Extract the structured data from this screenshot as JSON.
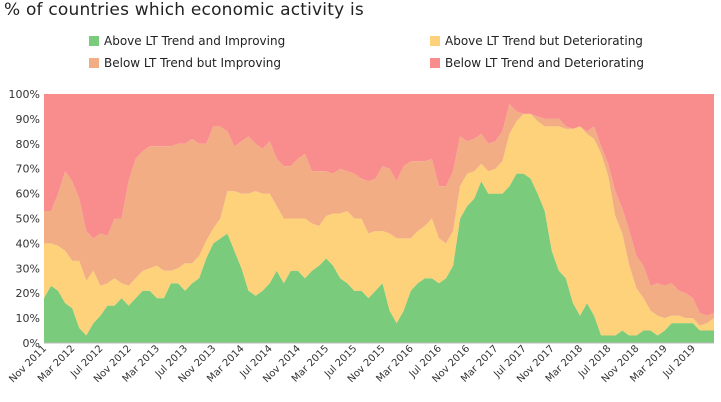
{
  "chart_data": {
    "type": "area",
    "stacked": true,
    "title": "% of countries which economic activity is",
    "x": [
      "Nov 2011",
      "Dec 2011",
      "Jan 2012",
      "Feb 2012",
      "Mar 2012",
      "Apr 2012",
      "May 2012",
      "Jun 2012",
      "Jul 2012",
      "Aug 2012",
      "Sep 2012",
      "Oct 2012",
      "Nov 2012",
      "Dec 2012",
      "Jan 2013",
      "Feb 2013",
      "Mar 2013",
      "Apr 2013",
      "May 2013",
      "Jun 2013",
      "Jul 2013",
      "Aug 2013",
      "Sep 2013",
      "Oct 2013",
      "Nov 2013",
      "Dec 2013",
      "Jan 2014",
      "Feb 2014",
      "Mar 2014",
      "Apr 2014",
      "May 2014",
      "Jun 2014",
      "Jul 2014",
      "Aug 2014",
      "Sep 2014",
      "Oct 2014",
      "Nov 2014",
      "Dec 2014",
      "Jan 2015",
      "Feb 2015",
      "Mar 2015",
      "Apr 2015",
      "May 2015",
      "Jun 2015",
      "Jul 2015",
      "Aug 2015",
      "Sep 2015",
      "Oct 2015",
      "Nov 2015",
      "Dec 2015",
      "Jan 2016",
      "Feb 2016",
      "Mar 2016",
      "Apr 2016",
      "May 2016",
      "Jun 2016",
      "Jul 2016",
      "Aug 2016",
      "Sep 2016",
      "Oct 2016",
      "Nov 2016",
      "Dec 2016",
      "Jan 2017",
      "Feb 2017",
      "Mar 2017",
      "Apr 2017",
      "May 2017",
      "Jun 2017",
      "Jul 2017",
      "Aug 2017",
      "Sep 2017",
      "Oct 2017",
      "Nov 2017",
      "Dec 2017",
      "Jan 2018",
      "Feb 2018",
      "Mar 2018",
      "Apr 2018",
      "May 2018",
      "Jun 2018",
      "Jul 2018",
      "Aug 2018",
      "Sep 2018",
      "Oct 2018",
      "Nov 2018",
      "Dec 2018",
      "Jan 2019",
      "Feb 2019",
      "Mar 2019",
      "Apr 2019",
      "May 2019",
      "Jun 2019",
      "Jul 2019",
      "Aug 2019",
      "Sep 2019",
      "Oct 2019"
    ],
    "x_tick_labels": [
      "Nov 2011",
      "Mar 2012",
      "Jul 2012",
      "Nov 2012",
      "Mar 2013",
      "Jul 2013",
      "Nov 2013",
      "Mar 2014",
      "Jul 2014",
      "Nov 2014",
      "Mar 2015",
      "Jul 2015",
      "Nov 2015",
      "Mar 2016",
      "Jul 2016",
      "Nov 2016",
      "Mar 2017",
      "Jul 2017",
      "Nov 2017",
      "Mar 2018",
      "Jul 2018",
      "Nov 2018",
      "Mar 2019",
      "Jul 2019"
    ],
    "y_tick_labels": [
      "0%",
      "10%",
      "20%",
      "30%",
      "40%",
      "50%",
      "60%",
      "70%",
      "80%",
      "90%",
      "100%"
    ],
    "ylim": [
      0,
      100
    ],
    "legend_position": "top",
    "series": [
      {
        "name": "Above LT Trend and Improving",
        "color": "#7bcb7d",
        "values": [
          18,
          23,
          21,
          16,
          14,
          6,
          3,
          8,
          11,
          15,
          15,
          18,
          15,
          18,
          21,
          21,
          18,
          18,
          24,
          24,
          21,
          24,
          26,
          34,
          40,
          42,
          44,
          37,
          30,
          21,
          19,
          21,
          24,
          29,
          24,
          29,
          29,
          26,
          29,
          31,
          34,
          31,
          26,
          24,
          21,
          21,
          18,
          21,
          24,
          13,
          8,
          13,
          21,
          24,
          26,
          26,
          24,
          26,
          31,
          50,
          55,
          58,
          65,
          60,
          60,
          60,
          63,
          68,
          68,
          66,
          60,
          53,
          37,
          29,
          26,
          16,
          11,
          16,
          11,
          3,
          3,
          3,
          5,
          3,
          3,
          5,
          5,
          3,
          5,
          8,
          8,
          8,
          8,
          5,
          5,
          5
        ]
      },
      {
        "name": "Above LT Trend but Deteriorating",
        "color": "#fdd27a",
        "values": [
          22,
          17,
          18,
          21,
          19,
          27,
          22,
          21,
          12,
          9,
          11,
          6,
          8,
          8,
          8,
          9,
          13,
          11,
          5,
          6,
          11,
          8,
          9,
          7,
          6,
          8,
          17,
          24,
          30,
          39,
          42,
          39,
          36,
          26,
          26,
          21,
          21,
          24,
          19,
          16,
          17,
          21,
          26,
          29,
          29,
          29,
          26,
          24,
          21,
          31,
          34,
          29,
          21,
          21,
          21,
          24,
          18,
          14,
          14,
          13,
          13,
          11,
          7,
          9,
          10,
          13,
          21,
          21,
          24,
          26,
          29,
          34,
          50,
          58,
          60,
          70,
          76,
          68,
          71,
          73,
          64,
          48,
          39,
          28,
          19,
          13,
          8,
          8,
          5,
          3,
          3,
          2,
          2,
          2,
          3,
          5
        ]
      },
      {
        "name": "Below LT Trend but Improving",
        "color": "#f2ad85",
        "values": [
          13,
          13,
          21,
          32,
          32,
          25,
          20,
          13,
          21,
          19,
          24,
          26,
          42,
          48,
          48,
          49,
          48,
          50,
          50,
          50,
          48,
          50,
          45,
          39,
          41,
          37,
          24,
          18,
          21,
          23,
          19,
          18,
          21,
          19,
          21,
          21,
          24,
          26,
          21,
          22,
          18,
          16,
          18,
          16,
          18,
          16,
          21,
          21,
          26,
          26,
          23,
          29,
          31,
          28,
          26,
          24,
          21,
          23,
          24,
          20,
          13,
          13,
          12,
          11,
          11,
          12,
          12,
          4,
          0,
          0,
          2,
          3,
          3,
          3,
          1,
          0,
          0,
          1,
          5,
          3,
          5,
          10,
          10,
          14,
          13,
          13,
          10,
          13,
          13,
          13,
          10,
          10,
          8,
          5,
          3,
          2
        ]
      },
      {
        "name": "Below LT Trend and Deteriorating",
        "color": "#f98d8d",
        "values": [
          47,
          47,
          40,
          31,
          35,
          42,
          55,
          58,
          56,
          57,
          50,
          50,
          35,
          26,
          23,
          21,
          21,
          21,
          21,
          20,
          20,
          18,
          20,
          20,
          13,
          13,
          15,
          21,
          19,
          17,
          20,
          22,
          19,
          26,
          29,
          29,
          26,
          24,
          31,
          31,
          31,
          32,
          30,
          31,
          32,
          34,
          35,
          34,
          29,
          30,
          35,
          29,
          27,
          27,
          27,
          26,
          37,
          37,
          31,
          17,
          19,
          18,
          16,
          20,
          19,
          15,
          4,
          7,
          8,
          8,
          9,
          10,
          10,
          10,
          13,
          14,
          13,
          15,
          13,
          21,
          28,
          39,
          46,
          55,
          65,
          69,
          77,
          76,
          77,
          76,
          79,
          80,
          82,
          88,
          89,
          88
        ]
      }
    ]
  }
}
